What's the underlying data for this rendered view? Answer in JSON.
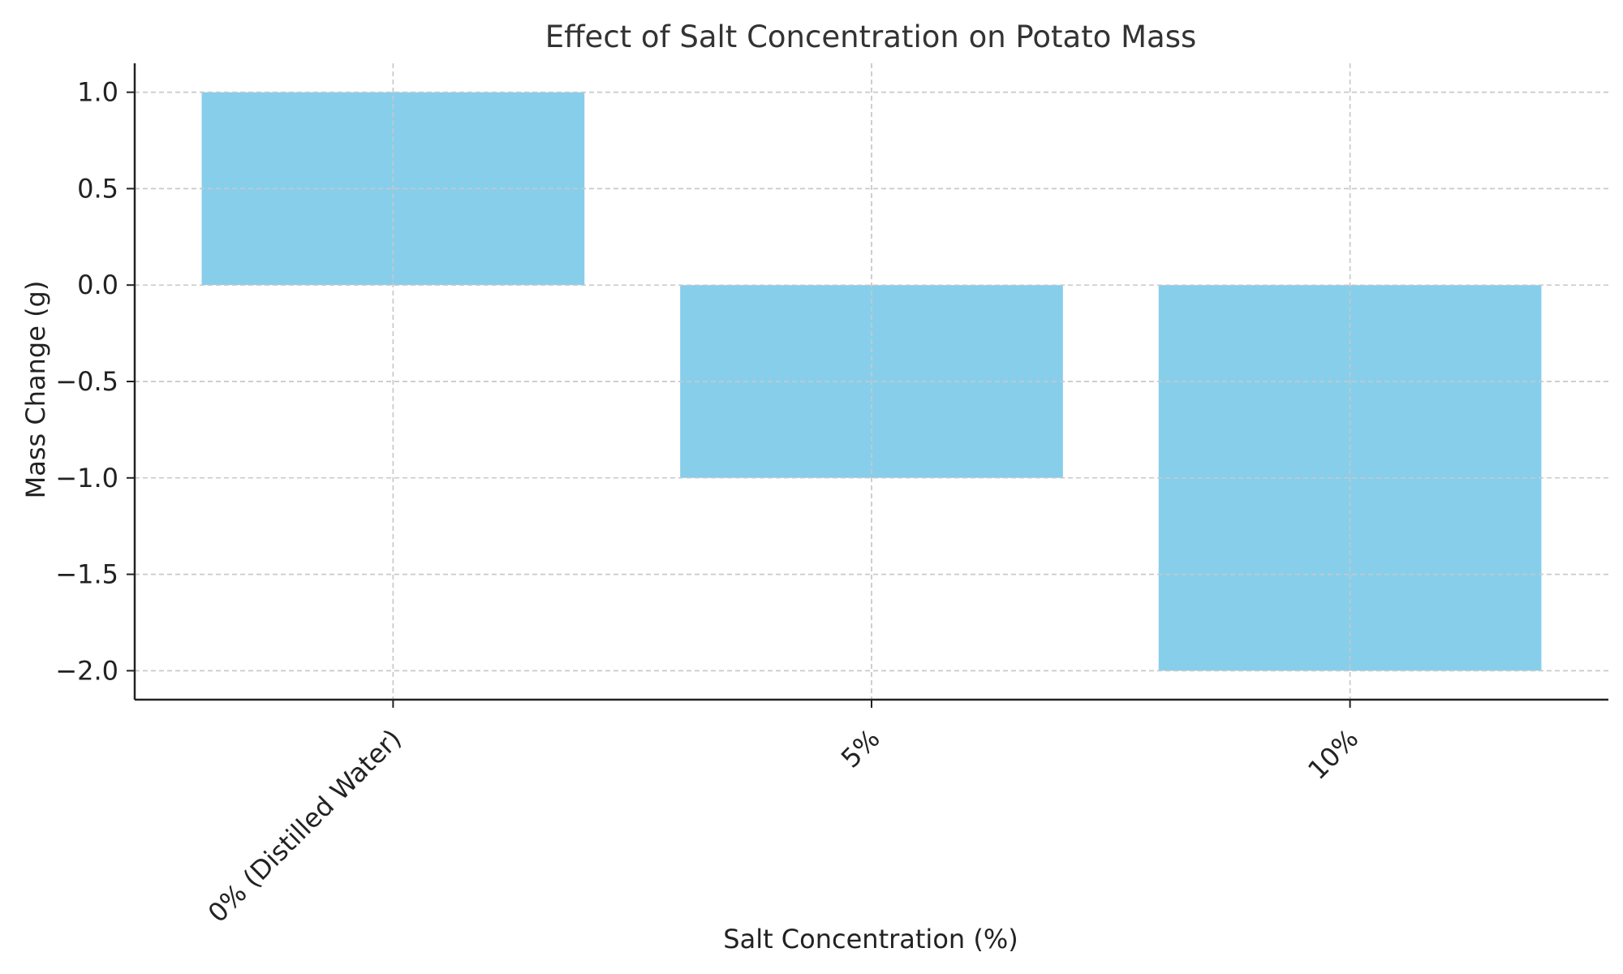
{
  "chart_data": {
    "type": "bar",
    "title": "Effect of Salt Concentration on Potato Mass",
    "xlabel": "Salt Concentration (%)",
    "ylabel": "Mass Change (g)",
    "categories": [
      "0% (Distilled Water)",
      "5%",
      "10%"
    ],
    "values": [
      1.0,
      -1.0,
      -2.0
    ],
    "ylim": [
      -2.15,
      1.15
    ],
    "yticks": [
      1.0,
      0.5,
      0.0,
      -0.5,
      -1.0,
      -1.5,
      -2.0
    ],
    "ytick_labels": [
      "1.0",
      "0.5",
      "0.0",
      "−0.5",
      "−1.0",
      "−1.5",
      "−2.0"
    ],
    "bar_color": "#87ceeb",
    "grid": true,
    "legend": "none"
  }
}
